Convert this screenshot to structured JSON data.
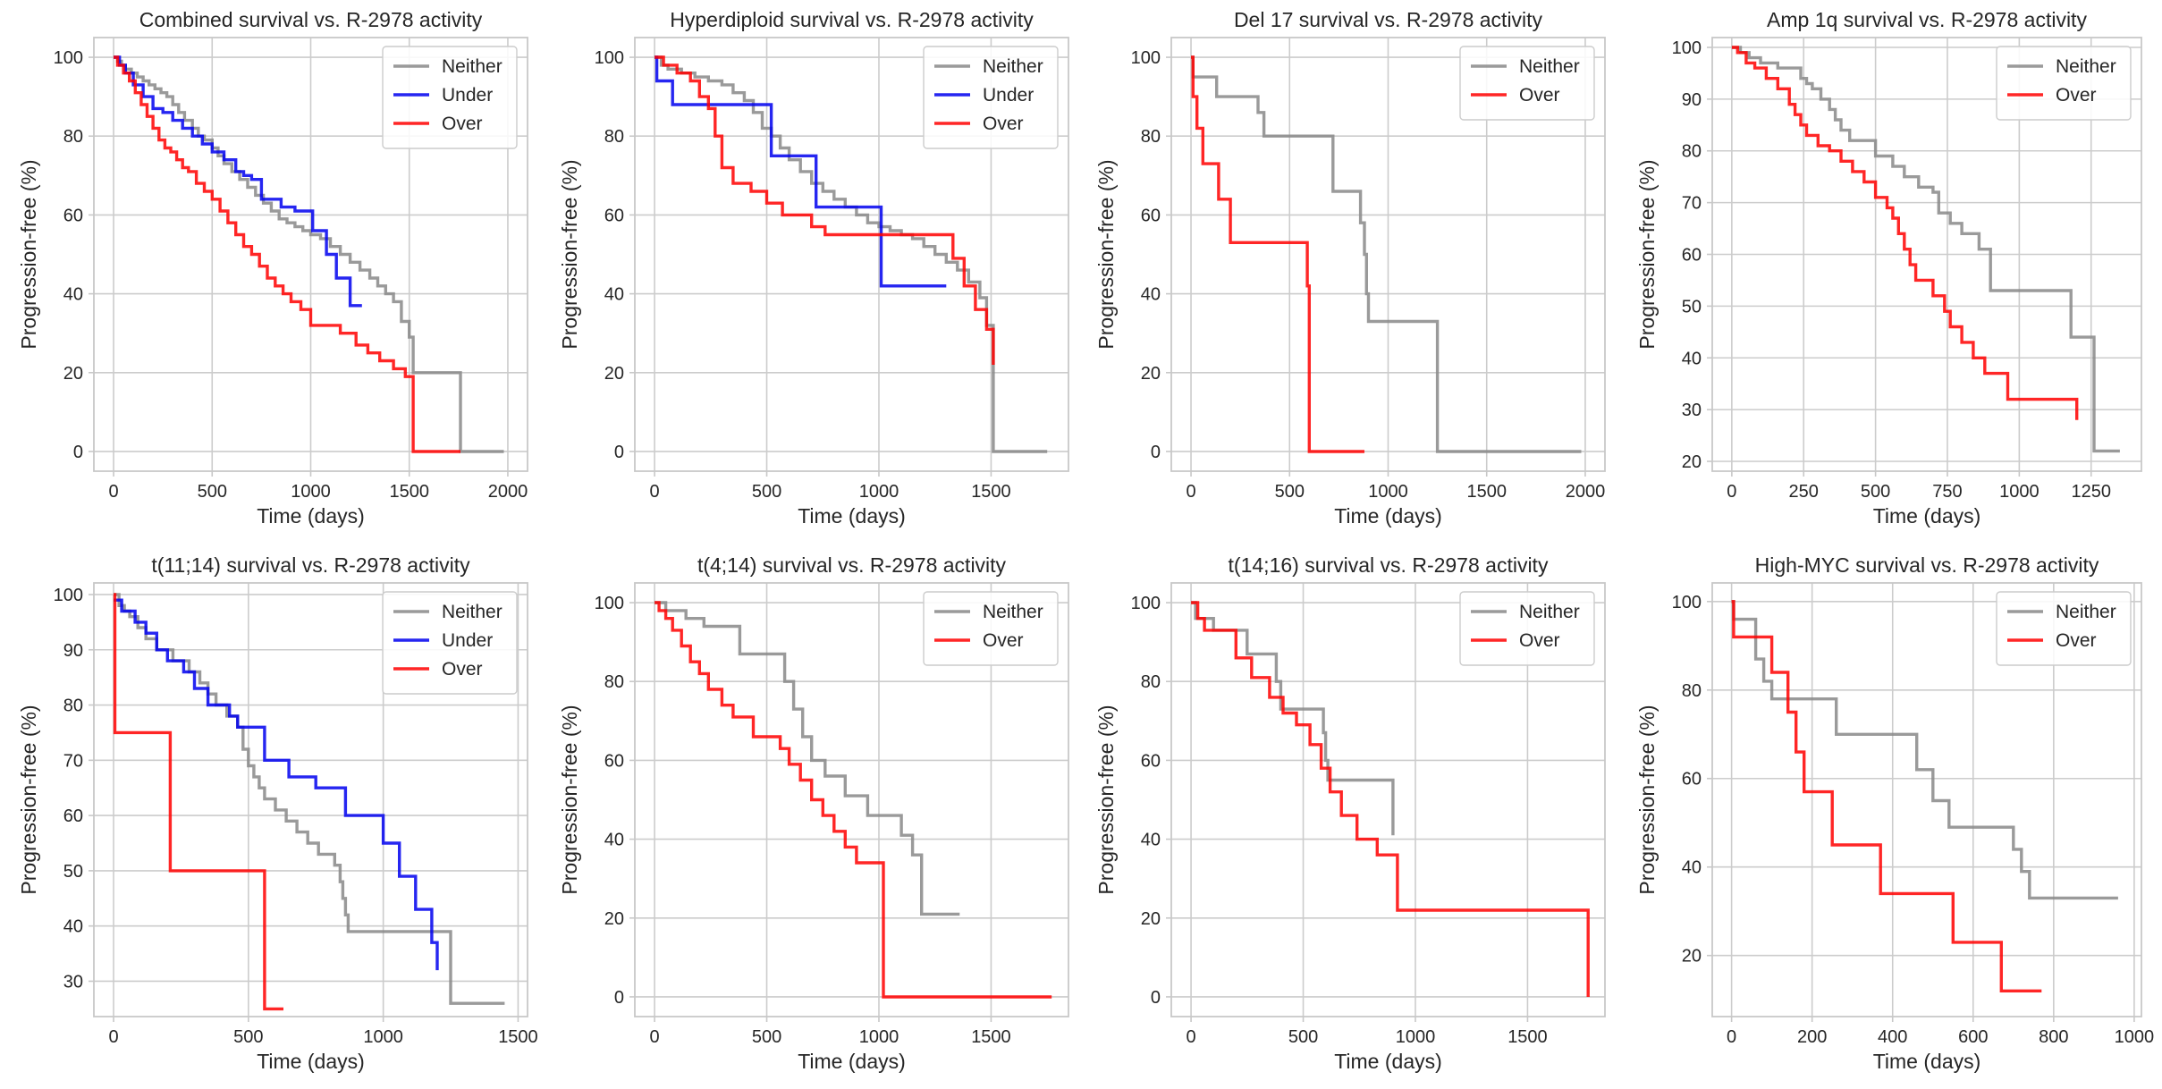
{
  "colors": {
    "neither": "#888888",
    "under": "#0000ee",
    "over": "#ff0000"
  },
  "chart_data": [
    {
      "type": "line",
      "step": "post",
      "title": "Combined survival vs. R-2978 activity",
      "xlabel": "Time (days)",
      "ylabel": "Progression-free (%)",
      "xlim": [
        -100,
        2100
      ],
      "ylim": [
        -5,
        105
      ],
      "xticks": [
        0,
        500,
        1000,
        1500,
        2000
      ],
      "yticks": [
        0,
        20,
        40,
        60,
        80,
        100
      ],
      "legend": "upper right",
      "series": [
        {
          "name": "Neither",
          "color": "#888888",
          "x": [
            0,
            20,
            40,
            60,
            90,
            120,
            150,
            180,
            210,
            240,
            270,
            300,
            330,
            360,
            400,
            430,
            460,
            500,
            530,
            560,
            600,
            640,
            680,
            720,
            760,
            800,
            840,
            880,
            920,
            960,
            1000,
            1050,
            1100,
            1150,
            1200,
            1250,
            1300,
            1340,
            1380,
            1420,
            1460,
            1500,
            1520,
            1760,
            1980
          ],
          "y": [
            100,
            99,
            98,
            97,
            96,
            95,
            94,
            93,
            92,
            91,
            90,
            88,
            86,
            84,
            82,
            80,
            79,
            77,
            75,
            73,
            71,
            69,
            67,
            65,
            63,
            61,
            59,
            58,
            57,
            56,
            55,
            54,
            52,
            50,
            48,
            46,
            44,
            42,
            40,
            38,
            33,
            29,
            20,
            0,
            0
          ]
        },
        {
          "name": "Under",
          "color": "#0000ee",
          "x": [
            0,
            30,
            60,
            100,
            150,
            200,
            250,
            300,
            350,
            400,
            450,
            500,
            560,
            620,
            660,
            700,
            750,
            850,
            920,
            1010,
            1080,
            1130,
            1200,
            1260
          ],
          "y": [
            100,
            98,
            96,
            93,
            90,
            87,
            86,
            84,
            82,
            80,
            78,
            76,
            74,
            71,
            70,
            69,
            64,
            62,
            61,
            56,
            50,
            44,
            37,
            37
          ]
        },
        {
          "name": "Over",
          "color": "#ff0000",
          "x": [
            0,
            20,
            50,
            80,
            110,
            140,
            170,
            200,
            230,
            260,
            290,
            320,
            350,
            380,
            420,
            460,
            500,
            540,
            580,
            620,
            660,
            700,
            740,
            780,
            820,
            860,
            900,
            950,
            1000,
            1150,
            1230,
            1290,
            1350,
            1420,
            1480,
            1520,
            1760
          ],
          "y": [
            100,
            98,
            96,
            94,
            91,
            88,
            85,
            82,
            79,
            77,
            76,
            74,
            72,
            71,
            68,
            66,
            64,
            61,
            58,
            55,
            52,
            50,
            47,
            44,
            42,
            40,
            38,
            36,
            32,
            30,
            27,
            25,
            23,
            21,
            19,
            0,
            0
          ]
        }
      ]
    },
    {
      "type": "line",
      "step": "post",
      "title": "Hyperdiploid survival vs. R-2978 activity",
      "xlabel": "Time (days)",
      "ylabel": "Progression-free (%)",
      "xlim": [
        -88,
        1845
      ],
      "ylim": [
        -5,
        105
      ],
      "xticks": [
        0,
        500,
        1000,
        1500
      ],
      "yticks": [
        0,
        20,
        40,
        60,
        80,
        100
      ],
      "legend": "upper right",
      "series": [
        {
          "name": "Neither",
          "color": "#888888",
          "x": [
            0,
            30,
            60,
            120,
            180,
            240,
            300,
            350,
            400,
            440,
            480,
            520,
            560,
            600,
            650,
            700,
            750,
            800,
            850,
            900,
            950,
            1000,
            1050,
            1100,
            1150,
            1200,
            1250,
            1300,
            1350,
            1400,
            1450,
            1480,
            1510,
            1750
          ],
          "y": [
            100,
            98,
            97,
            96,
            95,
            94,
            93,
            91,
            89,
            86,
            82,
            80,
            77,
            74,
            71,
            68,
            66,
            64,
            62,
            60,
            58,
            57,
            56,
            55,
            54,
            52,
            50,
            48,
            46,
            43,
            39,
            32,
            0,
            0
          ]
        },
        {
          "name": "Under",
          "color": "#0000ee",
          "x": [
            0,
            10,
            80,
            330,
            520,
            720,
            1010,
            1300
          ],
          "y": [
            100,
            94,
            88,
            88,
            75,
            62,
            42,
            42
          ]
        },
        {
          "name": "Over",
          "color": "#ff0000",
          "x": [
            0,
            40,
            100,
            160,
            200,
            240,
            270,
            300,
            350,
            430,
            500,
            570,
            700,
            760,
            1250,
            1330,
            1380,
            1430,
            1480,
            1510
          ],
          "y": [
            100,
            98,
            96,
            94,
            90,
            87,
            80,
            72,
            68,
            66,
            63,
            60,
            57,
            55,
            55,
            49,
            42,
            36,
            31,
            22
          ]
        }
      ]
    },
    {
      "type": "line",
      "step": "post",
      "title": "Del 17 survival vs. R-2978 activity",
      "xlabel": "Time (days)",
      "ylabel": "Progression-free (%)",
      "xlim": [
        -100,
        2100
      ],
      "ylim": [
        -5,
        105
      ],
      "xticks": [
        0,
        500,
        1000,
        1500,
        2000
      ],
      "yticks": [
        0,
        20,
        40,
        60,
        80,
        100
      ],
      "legend": "upper right",
      "series": [
        {
          "name": "Neither",
          "color": "#888888",
          "x": [
            0,
            10,
            130,
            340,
            370,
            650,
            720,
            860,
            880,
            890,
            900,
            1250,
            1980
          ],
          "y": [
            100,
            95,
            90,
            86,
            80,
            80,
            66,
            58,
            50,
            40,
            33,
            0,
            0
          ]
        },
        {
          "name": "Over",
          "color": "#ff0000",
          "x": [
            0,
            10,
            30,
            60,
            140,
            200,
            560,
            590,
            600,
            880
          ],
          "y": [
            100,
            90,
            82,
            73,
            64,
            53,
            53,
            42,
            0,
            0
          ]
        }
      ]
    },
    {
      "type": "line",
      "step": "post",
      "title": "Amp 1q survival vs. R-2978 activity",
      "xlabel": "Time (days)",
      "ylabel": "Progression-free (%)",
      "xlim": [
        -68,
        1425
      ],
      "ylim": [
        18.1,
        101.9
      ],
      "xticks": [
        0,
        250,
        500,
        750,
        1000,
        1250
      ],
      "yticks": [
        20,
        30,
        40,
        50,
        60,
        70,
        80,
        90,
        100
      ],
      "legend": "upper right",
      "series": [
        {
          "name": "Neither",
          "color": "#888888",
          "x": [
            0,
            30,
            60,
            100,
            160,
            240,
            260,
            280,
            310,
            340,
            360,
            380,
            410,
            480,
            500,
            560,
            600,
            650,
            700,
            720,
            760,
            800,
            860,
            900,
            1180,
            1260,
            1350
          ],
          "y": [
            100,
            99,
            98,
            97,
            96,
            94,
            93,
            92,
            90,
            88,
            86,
            84,
            82,
            82,
            79,
            77,
            75,
            73,
            72,
            68,
            66,
            64,
            61,
            53,
            44,
            22,
            22
          ]
        },
        {
          "name": "Over",
          "color": "#ff0000",
          "x": [
            0,
            20,
            50,
            80,
            120,
            160,
            200,
            220,
            240,
            260,
            300,
            340,
            380,
            420,
            460,
            500,
            540,
            560,
            580,
            600,
            620,
            640,
            700,
            740,
            760,
            800,
            840,
            880,
            960,
            1200
          ],
          "y": [
            100,
            99,
            97,
            96,
            94,
            92,
            89,
            87,
            85,
            83,
            81,
            80,
            78,
            76,
            74,
            71,
            69,
            67,
            64,
            61,
            58,
            55,
            52,
            49,
            46,
            43,
            40,
            37,
            32,
            28
          ]
        }
      ]
    },
    {
      "type": "line",
      "step": "post",
      "title": "t(11;14) survival vs. R-2978 activity",
      "xlabel": "Time (days)",
      "ylabel": "Progression-free (%)",
      "xlim": [
        -73,
        1535
      ],
      "ylim": [
        23.6,
        102.1
      ],
      "xticks": [
        0,
        500,
        1000,
        1500
      ],
      "yticks": [
        30,
        40,
        50,
        60,
        70,
        80,
        90,
        100
      ],
      "legend": "upper right",
      "series": [
        {
          "name": "Neither",
          "color": "#888888",
          "x": [
            0,
            20,
            40,
            60,
            90,
            120,
            160,
            220,
            280,
            320,
            350,
            380,
            420,
            460,
            480,
            500,
            520,
            540,
            560,
            600,
            640,
            680,
            720,
            760,
            820,
            840,
            850,
            860,
            870,
            1240,
            1250,
            1450
          ],
          "y": [
            100,
            98,
            97,
            96,
            94,
            92,
            90,
            88,
            86,
            84,
            82,
            80,
            78,
            76,
            72,
            69,
            67,
            65,
            63,
            61,
            59,
            57,
            55,
            53,
            51,
            48,
            45,
            42,
            39,
            39,
            26,
            26
          ]
        },
        {
          "name": "Under",
          "color": "#0000ee",
          "x": [
            0,
            30,
            80,
            120,
            160,
            200,
            260,
            300,
            350,
            430,
            460,
            560,
            650,
            750,
            860,
            1000,
            1060,
            1120,
            1180,
            1200
          ],
          "y": [
            99,
            97,
            95,
            93,
            90,
            88,
            86,
            83,
            80,
            78,
            76,
            70,
            67,
            65,
            60,
            55,
            49,
            43,
            37,
            32
          ]
        },
        {
          "name": "Over",
          "color": "#ff0000",
          "x": [
            0,
            5,
            210,
            550,
            560,
            630
          ],
          "y": [
            100,
            75,
            50,
            50,
            25,
            25
          ]
        }
      ]
    },
    {
      "type": "line",
      "step": "post",
      "title": "t(4;14) survival vs. R-2978 activity",
      "xlabel": "Time (days)",
      "ylabel": "Progression-free (%)",
      "xlim": [
        -88,
        1845
      ],
      "ylim": [
        -5,
        105
      ],
      "xticks": [
        0,
        500,
        1000,
        1500
      ],
      "yticks": [
        0,
        20,
        40,
        60,
        80,
        100
      ],
      "legend": "upper right",
      "series": [
        {
          "name": "Neither",
          "color": "#888888",
          "x": [
            0,
            50,
            140,
            220,
            380,
            580,
            620,
            660,
            700,
            760,
            850,
            950,
            1100,
            1150,
            1190,
            1360
          ],
          "y": [
            100,
            98,
            96,
            94,
            87,
            80,
            73,
            66,
            60,
            56,
            51,
            46,
            41,
            36,
            21,
            21
          ]
        },
        {
          "name": "Over",
          "color": "#ff0000",
          "x": [
            0,
            20,
            50,
            80,
            120,
            160,
            200,
            240,
            300,
            350,
            440,
            560,
            600,
            650,
            700,
            750,
            800,
            850,
            900,
            1020,
            1770
          ],
          "y": [
            100,
            98,
            96,
            93,
            89,
            85,
            82,
            78,
            74,
            71,
            66,
            63,
            59,
            55,
            50,
            46,
            42,
            38,
            34,
            0,
            0
          ]
        }
      ]
    },
    {
      "type": "line",
      "step": "post",
      "title": "t(14;16) survival vs. R-2978 activity",
      "xlabel": "Time (days)",
      "ylabel": "Progression-free (%)",
      "xlim": [
        -88,
        1845
      ],
      "ylim": [
        -5,
        105
      ],
      "xticks": [
        0,
        500,
        1000,
        1500
      ],
      "yticks": [
        0,
        20,
        40,
        60,
        80,
        100
      ],
      "legend": "upper right",
      "series": [
        {
          "name": "Neither",
          "color": "#888888",
          "x": [
            0,
            20,
            100,
            250,
            380,
            400,
            590,
            600,
            610,
            840,
            900
          ],
          "y": [
            100,
            96,
            93,
            87,
            80,
            73,
            67,
            60,
            55,
            55,
            41
          ]
        },
        {
          "name": "Over",
          "color": "#ff0000",
          "x": [
            0,
            30,
            60,
            200,
            270,
            350,
            410,
            470,
            530,
            580,
            620,
            670,
            740,
            830,
            920,
            1770
          ],
          "y": [
            100,
            96,
            93,
            86,
            81,
            76,
            72,
            69,
            64,
            58,
            52,
            46,
            40,
            36,
            22,
            0
          ]
        }
      ]
    },
    {
      "type": "line",
      "step": "post",
      "title": "High-MYC survival vs. R-2978 activity",
      "xlabel": "Time (days)",
      "ylabel": "Progression-free (%)",
      "xlim": [
        -48,
        1018
      ],
      "ylim": [
        6.2,
        104.2
      ],
      "xticks": [
        0,
        200,
        400,
        600,
        800,
        1000
      ],
      "yticks": [
        20,
        40,
        60,
        80,
        100
      ],
      "legend": "upper right",
      "series": [
        {
          "name": "Neither",
          "color": "#888888",
          "x": [
            0,
            5,
            60,
            80,
            100,
            260,
            460,
            500,
            540,
            700,
            720,
            740,
            960
          ],
          "y": [
            100,
            96,
            87,
            82,
            78,
            70,
            62,
            55,
            49,
            44,
            39,
            33,
            33
          ]
        },
        {
          "name": "Over",
          "color": "#ff0000",
          "x": [
            0,
            5,
            100,
            140,
            160,
            180,
            250,
            370,
            550,
            670,
            770
          ],
          "y": [
            100,
            92,
            84,
            75,
            66,
            57,
            45,
            34,
            23,
            12,
            12
          ]
        }
      ]
    }
  ]
}
